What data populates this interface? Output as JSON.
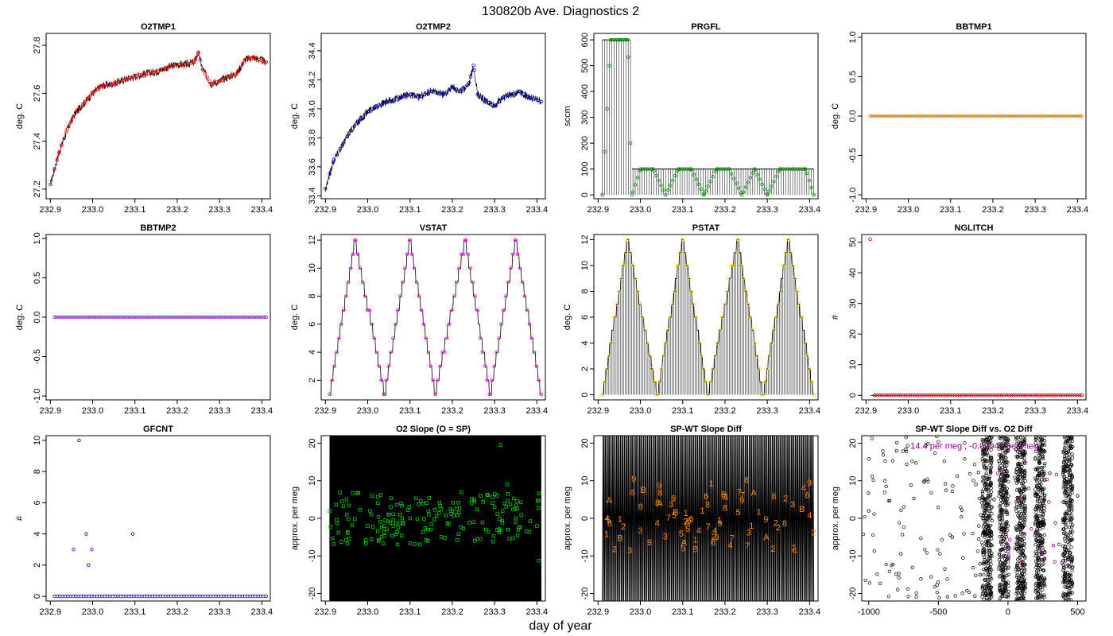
{
  "figure": {
    "title": "130820b   Ave. Diagnostics 2",
    "xlabel": "day of year"
  },
  "chart_data": [
    {
      "id": "o2tmp1",
      "type": "line",
      "title": "O2TMP1",
      "ylabel": "deg. C",
      "xlim": [
        232.89,
        233.42
      ],
      "ylim": [
        27.16,
        27.85
      ],
      "xticks": [
        232.9,
        233.0,
        233.1,
        233.2,
        233.3,
        233.4
      ],
      "xtick_labels": [
        "232.9",
        "233.0",
        "233.1",
        "233.2",
        "233.3",
        "233.4"
      ],
      "yticks": [
        27.2,
        27.4,
        27.6,
        27.8
      ],
      "ytick_labels": [
        "27.2",
        "27.4",
        "27.6",
        "27.8"
      ],
      "point_color": "#ff0000",
      "point_shape": "circle",
      "series": [
        {
          "x": [
            232.9,
            232.92,
            232.94,
            232.96,
            232.98,
            233.0,
            233.02,
            233.05,
            233.08,
            233.1,
            233.12,
            233.15,
            233.18,
            233.2,
            233.22,
            233.24,
            233.25,
            233.26,
            233.28,
            233.3,
            233.32,
            233.34,
            233.36,
            233.38,
            233.41
          ],
          "y": [
            27.22,
            27.35,
            27.45,
            27.52,
            27.56,
            27.6,
            27.63,
            27.64,
            27.66,
            27.67,
            27.68,
            27.69,
            27.71,
            27.72,
            27.72,
            27.73,
            27.77,
            27.7,
            27.64,
            27.65,
            27.67,
            27.68,
            27.74,
            27.75,
            27.73
          ]
        }
      ]
    },
    {
      "id": "o2tmp2",
      "type": "line",
      "title": "O2TMP2",
      "ylabel": "deg. C",
      "xlim": [
        232.89,
        233.42
      ],
      "ylim": [
        33.38,
        34.52
      ],
      "xticks": [
        232.9,
        233.0,
        233.1,
        233.2,
        233.3,
        233.4
      ],
      "xtick_labels": [
        "232.9",
        "233.0",
        "233.1",
        "233.2",
        "233.3",
        "233.4"
      ],
      "yticks": [
        33.4,
        33.6,
        33.8,
        34.0,
        34.2,
        34.4
      ],
      "ytick_labels": [
        "33.4",
        "33.6",
        "33.8",
        "34.0",
        "34.2",
        "34.4"
      ],
      "point_color": "#0000cc",
      "point_shape": "circle",
      "series": [
        {
          "x": [
            232.9,
            232.92,
            232.94,
            232.96,
            232.98,
            233.0,
            233.02,
            233.05,
            233.08,
            233.1,
            233.12,
            233.15,
            233.18,
            233.2,
            233.22,
            233.24,
            233.25,
            233.26,
            233.28,
            233.3,
            233.32,
            233.34,
            233.36,
            233.38,
            233.41
          ],
          "y": [
            33.45,
            33.65,
            33.75,
            33.85,
            33.92,
            33.98,
            34.02,
            34.05,
            34.08,
            34.1,
            34.08,
            34.12,
            34.1,
            34.15,
            34.12,
            34.18,
            34.3,
            34.1,
            34.05,
            34.02,
            34.08,
            34.1,
            34.12,
            34.08,
            34.05
          ]
        }
      ]
    },
    {
      "id": "prgfl",
      "type": "line",
      "title": "PRGFL",
      "ylabel": "sccm",
      "xlim": [
        232.89,
        233.42
      ],
      "ylim": [
        -15,
        625
      ],
      "xticks": [
        232.9,
        233.0,
        233.1,
        233.2,
        233.3,
        233.4
      ],
      "xtick_labels": [
        "232.9",
        "233.0",
        "233.1",
        "233.2",
        "233.3",
        "233.4"
      ],
      "yticks": [
        0,
        100,
        200,
        300,
        400,
        500,
        600
      ],
      "ytick_labels": [
        "0",
        "100",
        "200",
        "300",
        "400",
        "500",
        "600"
      ],
      "point_color": "#008800",
      "point_shape": "circle",
      "series": [
        {
          "x": [
            232.91,
            232.93,
            232.95,
            232.97,
            232.98,
            233.0,
            233.03,
            233.06,
            233.09,
            233.12,
            233.15,
            233.18,
            233.21,
            233.24,
            233.27,
            233.3,
            233.33,
            233.36,
            233.39,
            233.41
          ],
          "y": [
            0,
            600,
            600,
            600,
            0,
            100,
            100,
            0,
            100,
            100,
            0,
            100,
            100,
            0,
            100,
            0,
            100,
            100,
            100,
            0
          ]
        }
      ]
    },
    {
      "id": "bbtmp1",
      "type": "line",
      "title": "BBTMP1",
      "ylabel": "deg. C",
      "xlim": [
        232.89,
        233.42
      ],
      "ylim": [
        -1.05,
        1.05
      ],
      "xticks": [
        232.9,
        233.0,
        233.1,
        233.2,
        233.3,
        233.4
      ],
      "xtick_labels": [
        "232.9",
        "233.0",
        "233.1",
        "233.2",
        "233.3",
        "233.4"
      ],
      "yticks": [
        -1.0,
        -0.5,
        0.0,
        0.5,
        1.0
      ],
      "ytick_labels": [
        "-1.0",
        "-0.5",
        "0.0",
        "0.5",
        "1.0"
      ],
      "point_color": "#ff8c00",
      "point_shape": "circle",
      "series": [
        {
          "x": [
            232.91,
            233.41
          ],
          "y": [
            0,
            0
          ]
        }
      ]
    },
    {
      "id": "bbtmp2",
      "type": "line",
      "title": "BBTMP2",
      "ylabel": "deg. C",
      "xlim": [
        232.89,
        233.42
      ],
      "ylim": [
        -1.05,
        1.05
      ],
      "xticks": [
        232.9,
        233.0,
        233.1,
        233.2,
        233.3,
        233.4
      ],
      "xtick_labels": [
        "232.9",
        "233.0",
        "233.1",
        "233.2",
        "233.3",
        "233.4"
      ],
      "yticks": [
        -1.0,
        -0.5,
        0.0,
        0.5,
        1.0
      ],
      "ytick_labels": [
        "-1.0",
        "-0.5",
        "0.0",
        "0.5",
        "1.0"
      ],
      "point_color": "#8a2be2",
      "point_shape": "circle",
      "series": [
        {
          "x": [
            232.91,
            233.41
          ],
          "y": [
            0,
            0
          ]
        }
      ]
    },
    {
      "id": "vstat",
      "type": "line",
      "title": "VSTAT",
      "ylabel": "deg. C",
      "xlim": [
        232.89,
        233.42
      ],
      "ylim": [
        0.6,
        12.4
      ],
      "xticks": [
        232.9,
        233.0,
        233.1,
        233.2,
        233.3,
        233.4
      ],
      "xtick_labels": [
        "232.9",
        "233.0",
        "233.1",
        "233.2",
        "233.3",
        "233.4"
      ],
      "yticks": [
        2,
        4,
        6,
        8,
        10,
        12
      ],
      "ytick_labels": [
        "2",
        "4",
        "6",
        "8",
        "10",
        "12"
      ],
      "point_color": "#ff00ff",
      "point_shape": "circle",
      "series": [
        {
          "x": [
            232.91,
            232.97,
            233.04,
            233.1,
            233.16,
            233.23,
            233.29,
            233.35,
            233.41
          ],
          "y": [
            1,
            12,
            1,
            12,
            1,
            12,
            1,
            12,
            1
          ]
        }
      ]
    },
    {
      "id": "pstat",
      "type": "line",
      "title": "PSTAT",
      "ylabel": "deg. C",
      "xlim": [
        232.89,
        233.42
      ],
      "ylim": [
        -0.4,
        12.4
      ],
      "xticks": [
        232.9,
        233.0,
        233.1,
        233.2,
        233.3,
        233.4
      ],
      "xtick_labels": [
        "232.9",
        "233.0",
        "233.1",
        "233.2",
        "233.3",
        "233.4"
      ],
      "yticks": [
        0,
        2,
        4,
        6,
        8,
        10,
        12
      ],
      "ytick_labels": [
        "0",
        "2",
        "4",
        "6",
        "8",
        "10",
        "12"
      ],
      "point_color": "#ffd700",
      "point_shape": "circle",
      "series": [
        {
          "x": [
            232.91,
            232.97,
            233.04,
            233.1,
            233.16,
            233.23,
            233.29,
            233.35,
            233.41
          ],
          "y": [
            0,
            12,
            0,
            12,
            0,
            12,
            0,
            12,
            0
          ]
        }
      ]
    },
    {
      "id": "nglitch",
      "type": "scatter",
      "title": "NGLITCH",
      "ylabel": "#",
      "xlim": [
        232.89,
        233.42
      ],
      "ylim": [
        -1.5,
        52.5
      ],
      "xticks": [
        232.9,
        233.0,
        233.1,
        233.2,
        233.3,
        233.4
      ],
      "xtick_labels": [
        "232.9",
        "233.0",
        "233.1",
        "233.2",
        "233.3",
        "233.4"
      ],
      "yticks": [
        0,
        10,
        20,
        30,
        40,
        50
      ],
      "ytick_labels": [
        "0",
        "10",
        "20",
        "30",
        "40",
        "50"
      ],
      "point_color": "#cc0000",
      "point_shape": "circle",
      "series": [
        {
          "x": [
            232.91,
            232.92,
            233.41
          ],
          "y": [
            51,
            0,
            0
          ]
        }
      ]
    },
    {
      "id": "gfcnt",
      "type": "scatter",
      "title": "GFCNT",
      "ylabel": "#",
      "xlim": [
        232.89,
        233.42
      ],
      "ylim": [
        -0.3,
        10.3
      ],
      "xticks": [
        232.9,
        233.0,
        233.1,
        233.2,
        233.3,
        233.4
      ],
      "xtick_labels": [
        "232.9",
        "233.0",
        "233.1",
        "233.2",
        "233.3",
        "233.4"
      ],
      "yticks": [
        0,
        2,
        4,
        6,
        8,
        10
      ],
      "ytick_labels": [
        "0",
        "2",
        "4",
        "6",
        "8",
        "10"
      ],
      "point_color": "#0000cc",
      "point_shape": "circle",
      "series": [
        {
          "x": [
            232.955,
            232.968,
            232.985,
            232.99,
            232.998,
            233.095
          ],
          "y": [
            3,
            10,
            4,
            2,
            3,
            4
          ]
        }
      ]
    },
    {
      "id": "o2slope",
      "type": "scatter",
      "title": "O2 Slope (O = SP)",
      "ylabel": "approx. per meg",
      "xlim": [
        232.89,
        233.42
      ],
      "ylim": [
        -22,
        22
      ],
      "xticks": [
        232.9,
        233.0,
        233.1,
        233.2,
        233.3,
        233.4
      ],
      "xtick_labels": [
        "232.9",
        "233.0",
        "233.1",
        "233.2",
        "233.3",
        "233.4"
      ],
      "yticks": [
        -20,
        -10,
        0,
        10,
        20
      ],
      "ytick_labels": [
        "-20",
        "-10",
        "0",
        "10",
        "20"
      ],
      "point_color": "#00cc00",
      "point_shape": "square",
      "series": [
        {
          "x": [
            232.91,
            232.95,
            233.0,
            233.05,
            233.1,
            233.15,
            233.2,
            233.25,
            233.3,
            233.35,
            233.4
          ],
          "y": [
            2,
            5,
            -2,
            1,
            0,
            -3,
            2,
            -1,
            3,
            0,
            -2
          ]
        }
      ]
    },
    {
      "id": "spwtdiff",
      "type": "scatter",
      "title": "SP-WT Slope Diff",
      "ylabel": "approx. per meg",
      "xlim": [
        232.89,
        233.42
      ],
      "ylim": [
        -22,
        22
      ],
      "xticks": [
        232.9,
        233.0,
        233.1,
        233.2,
        233.3,
        233.4
      ],
      "xtick_labels": [
        "232.9",
        "233.0",
        "233.1",
        "233.2",
        "233.3",
        "233.4"
      ],
      "yticks": [
        -20,
        -10,
        0,
        10,
        20
      ],
      "ytick_labels": [
        "-20",
        "-10",
        "0",
        "10",
        "20"
      ],
      "point_color": "#ff8c00",
      "point_shape": "text",
      "series": [
        {
          "x": [
            232.92,
            232.96,
            233.0,
            233.04,
            233.08,
            233.12,
            233.16,
            233.2,
            233.24,
            233.28,
            233.32,
            233.36,
            233.4
          ],
          "y": [
            -5,
            -3,
            -4,
            -2,
            0,
            -1,
            -3,
            2,
            4,
            1,
            -2,
            3,
            0
          ]
        }
      ]
    },
    {
      "id": "spwtvso2",
      "type": "scatter",
      "title": "SP-WT Slope Diff vs. O2 Diff",
      "ylabel": "approx. per meg",
      "xlim": [
        -1050,
        560
      ],
      "ylim": [
        -22,
        22
      ],
      "xticks": [
        -1000,
        -500,
        0,
        500
      ],
      "xtick_labels": [
        "-1000",
        "-500",
        "0",
        "500"
      ],
      "yticks": [
        -20,
        -10,
        0,
        10,
        20
      ],
      "ytick_labels": [
        "-20",
        "-10",
        "0",
        "10",
        "20"
      ],
      "point_color": "#000000",
      "point_shape": "circle",
      "annotation": {
        "text": "14.4 per meg , -0.00045 per meg",
        "color": "#8b008b"
      },
      "series": [
        {
          "x": [
            -1000,
            -800,
            -600,
            -400,
            -200,
            -100,
            0,
            100,
            200,
            300,
            400,
            500
          ],
          "y": [
            2,
            18,
            10,
            -5,
            -15,
            5,
            -2,
            8,
            -10,
            12,
            -4,
            6
          ]
        }
      ]
    }
  ]
}
